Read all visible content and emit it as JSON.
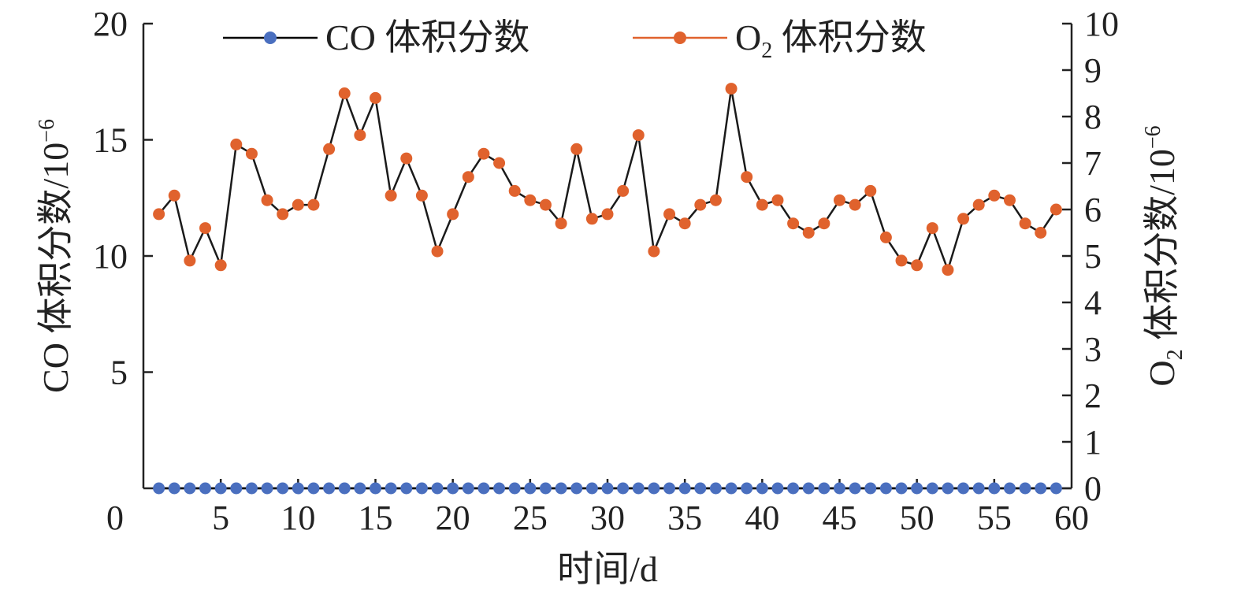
{
  "chart_data": {
    "type": "line",
    "x": [
      1,
      2,
      3,
      4,
      5,
      6,
      7,
      8,
      9,
      10,
      11,
      12,
      13,
      14,
      15,
      16,
      17,
      18,
      19,
      20,
      21,
      22,
      23,
      24,
      25,
      26,
      27,
      28,
      29,
      30,
      31,
      32,
      33,
      34,
      35,
      36,
      37,
      38,
      39,
      40,
      41,
      42,
      43,
      44,
      45,
      46,
      47,
      48,
      49,
      50,
      51,
      52,
      53,
      54,
      55,
      56,
      57,
      58,
      59
    ],
    "xlim": [
      0,
      60
    ],
    "xticks": [
      0,
      5,
      10,
      15,
      20,
      25,
      30,
      35,
      40,
      45,
      50,
      55,
      60
    ],
    "xlabel": "时间/d",
    "y_left": {
      "label_prefix": "CO 体积分数/10",
      "label_exp": "−6",
      "lim": [
        0,
        20
      ],
      "ticks": [
        5,
        10,
        15,
        20
      ]
    },
    "y_right": {
      "label_prefix": "O",
      "label_sub": "2",
      "label_mid": " 体积分数/10",
      "label_exp": "−6",
      "lim": [
        0,
        10
      ],
      "ticks": [
        0,
        1,
        2,
        3,
        4,
        5,
        6,
        7,
        8,
        9,
        10
      ]
    },
    "series": [
      {
        "name": "CO 体积分数",
        "axis": "left",
        "color": "#4a6fbf",
        "line_color": "#000000",
        "values": [
          0,
          0,
          0,
          0,
          0,
          0,
          0,
          0,
          0,
          0,
          0,
          0,
          0,
          0,
          0,
          0,
          0,
          0,
          0,
          0,
          0,
          0,
          0,
          0,
          0,
          0,
          0,
          0,
          0,
          0,
          0,
          0,
          0,
          0,
          0,
          0,
          0,
          0,
          0,
          0,
          0,
          0,
          0,
          0,
          0,
          0,
          0,
          0,
          0,
          0,
          0,
          0,
          0,
          0,
          0,
          0,
          0,
          0,
          0
        ]
      },
      {
        "name": "O₂ 体积分数",
        "axis": "right",
        "color": "#e0622d",
        "line_color": "#1a1a1a",
        "values": [
          5.9,
          6.3,
          4.9,
          5.6,
          4.8,
          7.4,
          7.2,
          6.2,
          5.9,
          6.1,
          6.1,
          7.3,
          8.5,
          7.6,
          8.4,
          6.3,
          7.1,
          6.3,
          5.1,
          5.9,
          6.7,
          7.2,
          7.0,
          6.4,
          6.2,
          6.1,
          5.7,
          7.3,
          5.8,
          5.9,
          6.4,
          7.6,
          5.1,
          5.9,
          5.7,
          6.1,
          6.2,
          8.6,
          6.7,
          6.1,
          6.2,
          5.7,
          5.5,
          5.7,
          6.2,
          6.1,
          6.4,
          5.4,
          4.9,
          4.8,
          5.6,
          4.7,
          5.8,
          6.1,
          6.3,
          6.2,
          5.7,
          5.5,
          6.0
        ]
      }
    ],
    "legend": {
      "position": "top",
      "co_label": "CO 体积分数",
      "o2_label_main": "O",
      "o2_label_sub": "2",
      "o2_label_rest": " 体积分数"
    }
  }
}
